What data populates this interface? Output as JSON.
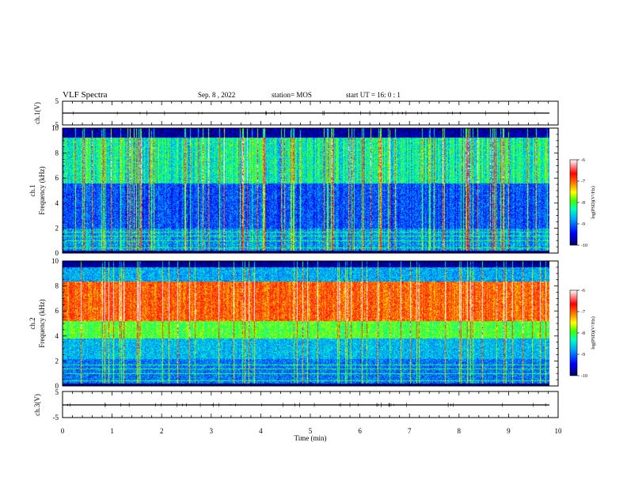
{
  "header": {
    "title": "VLF Spectra",
    "date": "Sep. 8 , 2022",
    "station": "station= MOS",
    "start": "start UT = 16: 0 : 1"
  },
  "chart_data": [
    {
      "type": "line",
      "panel": "ch1-waveform",
      "ylabel": "ch.1(V)",
      "ylim": [
        -5,
        5
      ],
      "ytick_labels": [
        "5",
        "-5"
      ],
      "x": [
        0,
        9.83
      ],
      "values": [
        0,
        0
      ]
    },
    {
      "type": "heatmap",
      "panel": "ch1-spectrogram",
      "ylabel": "ch.1",
      "ylabel2": "Frequency (kHz)",
      "ylim": [
        0,
        10
      ],
      "ytick_labels": [
        "0",
        "2",
        "4",
        "6",
        "8",
        "10"
      ],
      "colorbar": {
        "label": "log(PSD)(V²/Hz)",
        "range": [
          -10,
          -6
        ],
        "tick_labels": [
          "-6",
          "-7",
          "-8",
          "-9",
          "-10"
        ]
      },
      "dominant_band_khz": [
        5,
        9
      ]
    },
    {
      "type": "heatmap",
      "panel": "ch2-spectrogram",
      "ylabel": "ch.2",
      "ylabel2": "Frequency (kHz)",
      "ylim": [
        0,
        10
      ],
      "ytick_labels": [
        "0",
        "2",
        "4",
        "6",
        "8",
        "10"
      ],
      "colorbar": {
        "label": "log(PSD)(V²/Hz)",
        "range": [
          -10,
          -6
        ],
        "tick_labels": [
          "-6",
          "-7",
          "-8",
          "-9",
          "-10"
        ]
      },
      "dominant_band_khz": [
        5,
        8
      ]
    },
    {
      "type": "line",
      "panel": "ch3-waveform",
      "ylabel": "ch.3(V)",
      "ylim": [
        -5,
        5
      ],
      "ytick_labels": [
        "5",
        "-5"
      ],
      "x": [
        0,
        9.83
      ],
      "values": [
        0,
        0
      ]
    }
  ],
  "xaxis": {
    "label": "Time (min)",
    "range": [
      0,
      10
    ],
    "tick_labels": [
      "0",
      "1",
      "2",
      "3",
      "4",
      "5",
      "6",
      "7",
      "8",
      "9",
      "10"
    ]
  },
  "colors": {
    "colormap": [
      "#000060",
      "#0000ff",
      "#00a0ff",
      "#00ffc0",
      "#40ff00",
      "#ffff00",
      "#ff8000",
      "#ff0000",
      "#ffffff"
    ]
  }
}
